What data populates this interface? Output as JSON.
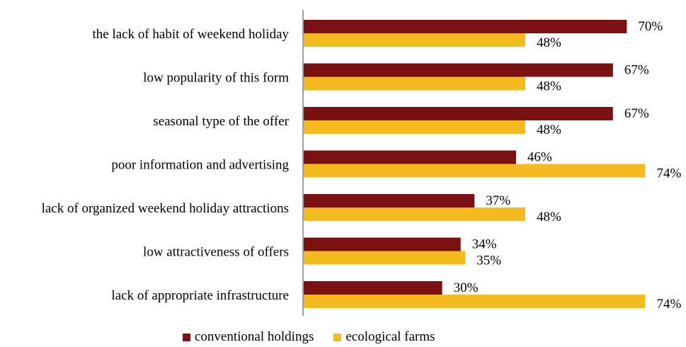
{
  "chart_data": {
    "type": "bar",
    "orientation": "horizontal",
    "categories": [
      "the lack of habit of weekend holiday",
      "low popularity of this form",
      "seasonal type of the offer",
      "poor information and advertising",
      "lack of organized weekend holiday attractions",
      "low attractiveness of offers",
      "lack of appropriate infrastructure"
    ],
    "series": [
      {
        "name": "conventional holdings",
        "color": "#7B1113",
        "values": [
          70,
          67,
          67,
          46,
          37,
          34,
          30
        ],
        "labels": [
          "70%",
          "67%",
          "67%",
          "46%",
          "37%",
          "34%",
          "30%"
        ]
      },
      {
        "name": "ecological farms",
        "color": "#F5BA1E",
        "values": [
          48,
          48,
          48,
          74,
          48,
          35,
          74
        ],
        "labels": [
          "48%",
          "48%",
          "48%",
          "74%",
          "48%",
          "35%",
          "74%"
        ]
      }
    ],
    "xlim": [
      0,
      75
    ],
    "grid": false,
    "legend": "bottom"
  }
}
